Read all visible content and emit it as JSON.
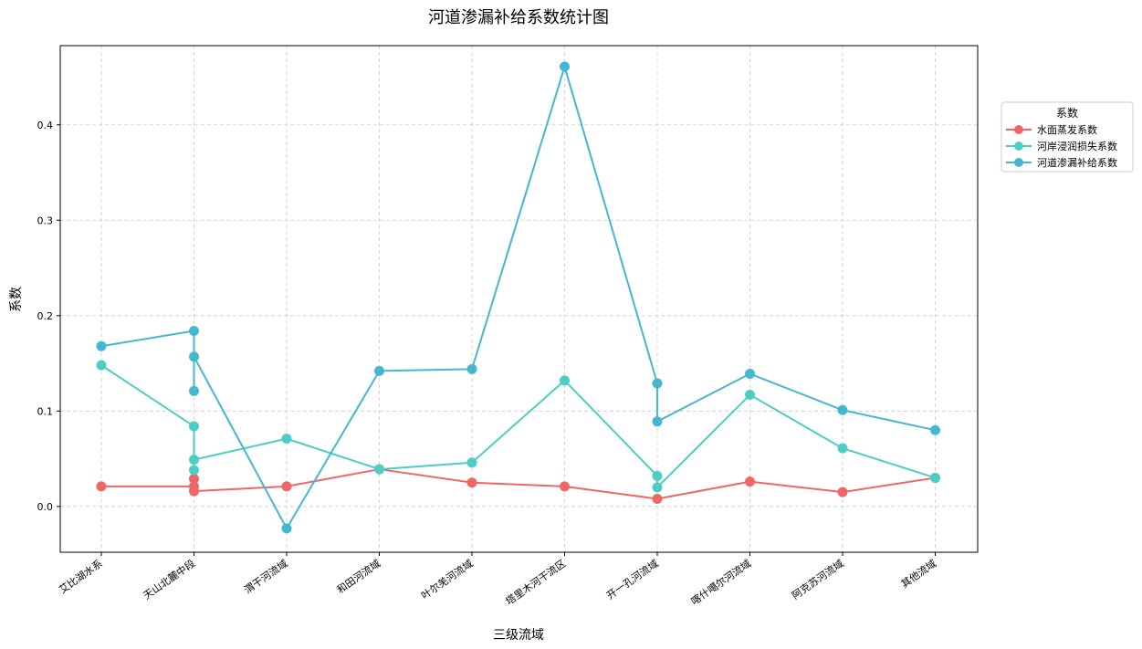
{
  "chart_data": {
    "type": "line",
    "title": "河道渗漏补给系数统计图",
    "xlabel": "三级流域",
    "ylabel": "系数",
    "categories": [
      "艾比湖水系",
      "天山北麓中段",
      "渭干河流域",
      "和田河流域",
      "叶尔羌河流域",
      "塔里木河干流区",
      "开一孔河流域",
      "喀什噶尔河流域",
      "阿克苏河流域",
      "其他流域"
    ],
    "yticks": [
      "0.0",
      "0.1",
      "0.2",
      "0.3",
      "0.4"
    ],
    "ylim": [
      -0.048,
      0.483
    ],
    "grid": true,
    "legend": {
      "title": "系数",
      "placement": "right"
    },
    "series": [
      {
        "name": "水面蒸发系数",
        "color": "#ee6666",
        "points": [
          [
            0,
            0.021
          ],
          [
            1,
            0.021
          ],
          [
            1,
            0.029
          ],
          [
            1,
            0.016
          ],
          [
            2,
            0.021
          ],
          [
            3,
            0.039
          ],
          [
            4,
            0.025
          ],
          [
            5,
            0.021
          ],
          [
            6,
            0.008
          ],
          [
            7,
            0.026
          ],
          [
            8,
            0.015
          ],
          [
            9,
            0.03
          ]
        ]
      },
      {
        "name": "河岸浸润损失系数",
        "color": "#4ecdc4",
        "points": [
          [
            0,
            0.148
          ],
          [
            1,
            0.084
          ],
          [
            1,
            0.038
          ],
          [
            1,
            0.049
          ],
          [
            2,
            0.071
          ],
          [
            3,
            0.039
          ],
          [
            4,
            0.046
          ],
          [
            5,
            0.132
          ],
          [
            6,
            0.032
          ],
          [
            6,
            0.02
          ],
          [
            7,
            0.117
          ],
          [
            8,
            0.061
          ],
          [
            9,
            0.03
          ]
        ]
      },
      {
        "name": "河道渗漏补给系数",
        "color": "#45b7d1",
        "points": [
          [
            0,
            0.168
          ],
          [
            1,
            0.184
          ],
          [
            1,
            0.121
          ],
          [
            1,
            0.157
          ],
          [
            2,
            -0.023
          ],
          [
            3,
            0.142
          ],
          [
            4,
            0.144
          ],
          [
            5,
            0.461
          ],
          [
            6,
            0.129
          ],
          [
            6,
            0.089
          ],
          [
            7,
            0.139
          ],
          [
            8,
            0.101
          ],
          [
            9,
            0.08
          ]
        ]
      }
    ]
  }
}
